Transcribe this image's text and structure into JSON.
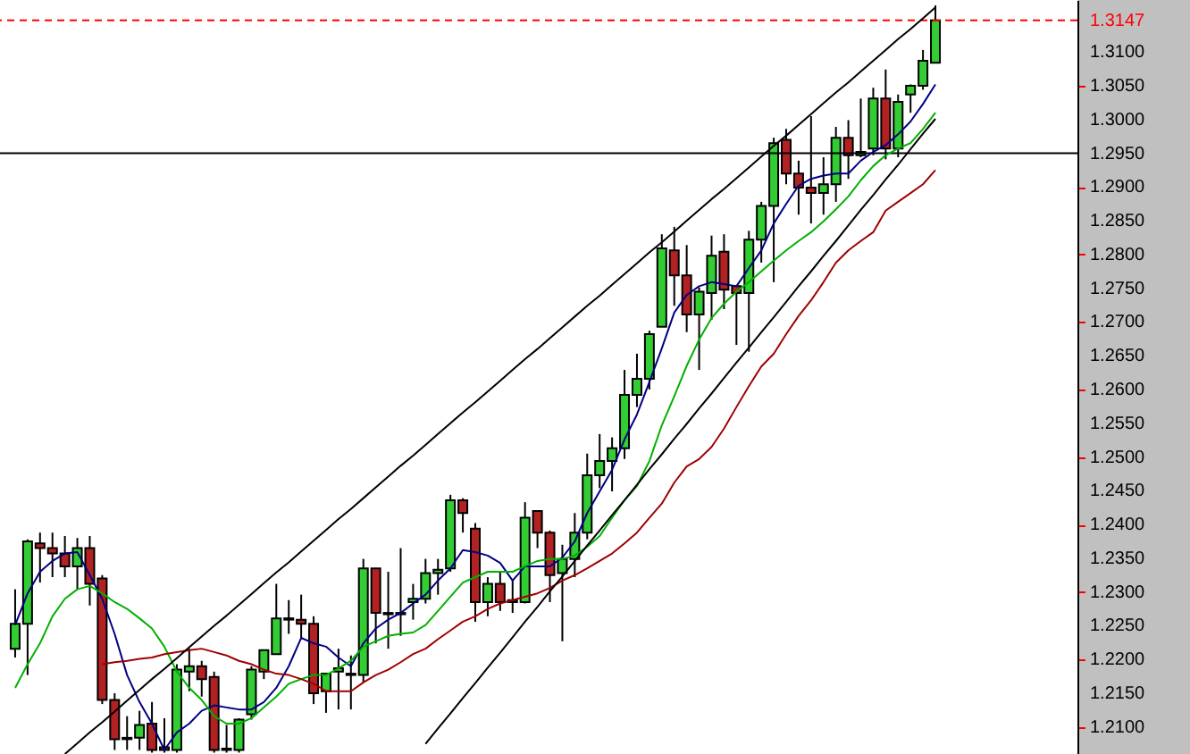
{
  "chart_data": {
    "type": "candlestick",
    "tick_labels": "y",
    "categories": [
      null,
      null,
      null,
      null,
      null,
      null,
      null,
      null,
      null,
      null,
      null,
      null,
      null,
      null,
      null,
      null,
      null,
      null,
      null,
      null,
      null,
      null,
      null,
      null,
      null,
      null,
      null,
      null,
      null,
      null,
      null,
      null,
      null,
      null,
      null,
      null,
      null,
      null,
      null,
      null,
      null,
      null,
      null,
      null,
      null,
      null,
      null,
      null,
      null,
      null,
      null,
      null,
      null,
      null,
      null,
      null,
      null,
      null,
      null,
      null,
      null,
      null,
      null,
      null,
      null,
      null,
      null,
      null,
      null,
      null,
      null,
      null,
      null,
      null,
      null
    ],
    "ohlc": [
      [
        1.2216,
        1.2304,
        1.2203,
        1.2253
      ],
      [
        1.2253,
        1.2378,
        1.2177,
        1.2375
      ],
      [
        1.2372,
        1.2388,
        1.2314,
        1.2365
      ],
      [
        1.2365,
        1.2388,
        1.2322,
        1.2357
      ],
      [
        1.2357,
        1.2383,
        1.2322,
        1.2338
      ],
      [
        1.2338,
        1.238,
        1.2304,
        1.2365
      ],
      [
        1.2365,
        1.2383,
        1.228,
        1.2312
      ],
      [
        1.232,
        1.2325,
        1.2134,
        1.214
      ],
      [
        1.214,
        1.215,
        1.2066,
        1.2082
      ],
      [
        1.2084,
        1.2116,
        1.2066,
        1.2082
      ],
      [
        1.2084,
        1.2124,
        1.2066,
        1.2103
      ],
      [
        1.2105,
        1.2137,
        1.2062,
        1.2066
      ],
      [
        1.207,
        1.2113,
        1.2062,
        1.2066
      ],
      [
        1.2066,
        1.2193,
        1.2062,
        1.2185
      ],
      [
        1.2182,
        1.2216,
        1.2153,
        1.219
      ],
      [
        1.219,
        1.2198,
        1.2145,
        1.2171
      ],
      [
        1.2174,
        1.2182,
        1.2062,
        1.2066
      ],
      [
        1.2068,
        1.2103,
        1.2062,
        1.2066
      ],
      [
        1.2066,
        1.2113,
        1.2062,
        1.2111
      ],
      [
        1.2119,
        1.219,
        1.2111,
        1.2185
      ],
      [
        1.2182,
        1.2214,
        1.2171,
        1.2214
      ],
      [
        1.2208,
        1.2312,
        1.2208,
        1.2261
      ],
      [
        1.2261,
        1.2288,
        1.2238,
        1.2259
      ],
      [
        1.2259,
        1.2296,
        1.223,
        1.2253
      ],
      [
        1.2253,
        1.2264,
        1.2134,
        1.215
      ],
      [
        1.2153,
        1.2179,
        1.2121,
        1.2179
      ],
      [
        1.2182,
        1.2216,
        1.2126,
        1.2187
      ],
      [
        1.2179,
        1.2206,
        1.2126,
        1.2177
      ],
      [
        1.2177,
        1.2349,
        1.2166,
        1.2335
      ],
      [
        1.2335,
        1.2335,
        1.2224,
        1.2269
      ],
      [
        1.2269,
        1.233,
        1.2216,
        1.2267
      ],
      [
        1.2267,
        1.2365,
        1.2235,
        1.2269
      ],
      [
        1.2285,
        1.2312,
        1.2259,
        1.229
      ],
      [
        1.229,
        1.2349,
        1.2283,
        1.2328
      ],
      [
        1.2328,
        1.2349,
        1.2296,
        1.2333
      ],
      [
        1.2335,
        1.2444,
        1.233,
        1.2436
      ],
      [
        1.2436,
        1.2439,
        1.2388,
        1.2417
      ],
      [
        1.2394,
        1.2402,
        1.2256,
        1.2285
      ],
      [
        1.2285,
        1.2322,
        1.2264,
        1.2312
      ],
      [
        1.2312,
        1.233,
        1.2272,
        1.2285
      ],
      [
        1.2285,
        1.2317,
        1.2269,
        1.2288
      ],
      [
        1.2285,
        1.2433,
        1.2283,
        1.241
      ],
      [
        1.242,
        1.242,
        1.2365,
        1.2388
      ],
      [
        1.2388,
        1.2391,
        1.2285,
        1.2325
      ],
      [
        1.2328,
        1.237,
        1.2227,
        1.2349
      ],
      [
        1.2349,
        1.2417,
        1.2322,
        1.2388
      ],
      [
        1.2388,
        1.2505,
        1.2378,
        1.2473
      ],
      [
        1.2473,
        1.2534,
        1.2454,
        1.2494
      ],
      [
        1.2494,
        1.2529,
        1.2449,
        1.2513
      ],
      [
        1.2513,
        1.2629,
        1.2497,
        1.2592
      ],
      [
        1.2592,
        1.2653,
        1.2574,
        1.2616
      ],
      [
        1.2616,
        1.2687,
        1.26,
        1.2682
      ],
      [
        1.2693,
        1.283,
        1.2693,
        1.2809
      ],
      [
        1.2806,
        1.2841,
        1.2724,
        1.2769
      ],
      [
        1.2769,
        1.2814,
        1.2685,
        1.2711
      ],
      [
        1.2711,
        1.2751,
        1.2629,
        1.2745
      ],
      [
        1.2743,
        1.2828,
        1.2703,
        1.2798
      ],
      [
        1.2804,
        1.283,
        1.2719,
        1.2748
      ],
      [
        1.2753,
        1.2753,
        1.2666,
        1.2743
      ],
      [
        1.2743,
        1.2835,
        1.2656,
        1.2822
      ],
      [
        1.2822,
        1.2878,
        1.2788,
        1.2872
      ],
      [
        1.2872,
        1.2973,
        1.2759,
        1.2965
      ],
      [
        1.297,
        1.2986,
        1.2904,
        1.292
      ],
      [
        1.292,
        1.2939,
        1.2859,
        1.2899
      ],
      [
        1.2899,
        1.3005,
        1.2846,
        1.2891
      ],
      [
        1.2891,
        1.2944,
        1.2859,
        1.2904
      ],
      [
        1.2904,
        1.2989,
        1.2878,
        1.2973
      ],
      [
        1.2973,
        1.2999,
        1.2912,
        1.2947
      ],
      [
        1.2947,
        1.3031,
        1.2944,
        1.2952
      ],
      [
        1.2957,
        1.3047,
        1.2947,
        1.3031
      ],
      [
        1.3031,
        1.3074,
        1.2941,
        1.2957
      ],
      [
        1.2957,
        1.3037,
        1.2944,
        1.3026
      ],
      [
        1.3037,
        1.3052,
        1.301,
        1.305
      ],
      [
        1.305,
        1.3103,
        1.3044,
        1.3087
      ],
      [
        1.3084,
        1.3169,
        1.3084,
        1.3147
      ]
    ],
    "colors": [
      "#32cd32",
      "#32cd32",
      "#b22222",
      "#b22222",
      "#b22222",
      "#32cd32",
      "#b22222",
      "#b22222",
      "#b22222",
      "#b22222",
      "#32cd32",
      "#b22222",
      "#b22222",
      "#32cd32",
      "#32cd32",
      "#b22222",
      "#b22222",
      "#b22222",
      "#32cd32",
      "#32cd32",
      "#32cd32",
      "#32cd32",
      "#b22222",
      "#b22222",
      "#b22222",
      "#32cd32",
      "#32cd32",
      "#b22222",
      "#32cd32",
      "#b22222",
      "#b22222",
      "#32cd32",
      "#32cd32",
      "#32cd32",
      "#32cd32",
      "#32cd32",
      "#b22222",
      "#b22222",
      "#32cd32",
      "#b22222",
      "#32cd32",
      "#32cd32",
      "#b22222",
      "#b22222",
      "#32cd32",
      "#32cd32",
      "#32cd32",
      "#32cd32",
      "#32cd32",
      "#32cd32",
      "#32cd32",
      "#32cd32",
      "#32cd32",
      "#b22222",
      "#b22222",
      "#32cd32",
      "#32cd32",
      "#b22222",
      "#b22222",
      "#32cd32",
      "#32cd32",
      "#32cd32",
      "#b22222",
      "#b22222",
      "#b22222",
      "#32cd32",
      "#32cd32",
      "#b22222",
      "#32cd32",
      "#32cd32",
      "#b22222",
      "#32cd32",
      "#32cd32",
      "#32cd32",
      "#32cd32"
    ],
    "series": [
      {
        "type": "line",
        "color": "#000080",
        "values": [
          1.2251,
          1.2298,
          1.233,
          1.2346,
          1.2357,
          1.2359,
          1.2325,
          1.229,
          1.2238,
          1.2177,
          1.2137,
          1.2105,
          1.2066,
          1.2092,
          1.2105,
          1.2124,
          1.2132,
          1.2129,
          1.2126,
          1.2126,
          1.2137,
          1.2158,
          1.219,
          1.2232,
          1.2224,
          1.2219,
          1.2203,
          1.219,
          1.2224,
          1.2246,
          1.2259,
          1.2269,
          1.2283,
          1.2296,
          1.2317,
          1.2335,
          1.2362,
          1.2359,
          1.2354,
          1.2343,
          1.2317,
          1.2338,
          1.2338,
          1.2338,
          1.2351,
          1.2375,
          1.2417,
          1.2449,
          1.2481,
          1.2526,
          1.2563,
          1.2611,
          1.2661,
          1.2714,
          1.274,
          1.2753,
          1.2759,
          1.2756,
          1.2753,
          1.278,
          1.2806,
          1.2846,
          1.2875,
          1.2902,
          1.2912,
          1.2917,
          1.292,
          1.292,
          1.2939,
          1.2952,
          1.2962,
          1.2978,
          1.2997,
          1.3023,
          1.3052
        ]
      },
      {
        "type": "line",
        "color": "#00b000",
        "values": [
          1.2158,
          1.2193,
          1.2224,
          1.2264,
          1.229,
          1.2304,
          1.2309,
          1.2298,
          1.2285,
          1.2275,
          1.2261,
          1.2246,
          1.2219,
          1.2182,
          1.2158,
          1.214,
          1.2116,
          1.2105,
          1.2105,
          1.2113,
          1.2129,
          1.2145,
          1.2164,
          1.2171,
          1.2177,
          1.2177,
          1.2187,
          1.2198,
          1.2219,
          1.2227,
          1.2235,
          1.2238,
          1.224,
          1.2251,
          1.2272,
          1.2293,
          1.2314,
          1.2322,
          1.233,
          1.233,
          1.233,
          1.2338,
          1.2346,
          1.2349,
          1.2349,
          1.2354,
          1.2367,
          1.2383,
          1.241,
          1.2436,
          1.2457,
          1.2494,
          1.2547,
          1.259,
          1.2635,
          1.2674,
          1.2706,
          1.2727,
          1.2745,
          1.2759,
          1.2775,
          1.2791,
          1.2806,
          1.282,
          1.2833,
          1.2849,
          1.2867,
          1.2886,
          1.291,
          1.2931,
          1.2947,
          1.2957,
          1.2965,
          1.2986,
          1.301
        ]
      },
      {
        "type": "line",
        "color": "#a00000",
        "values": [
          null,
          null,
          null,
          null,
          null,
          null,
          null,
          1.2193,
          1.2196,
          1.2198,
          1.2201,
          1.2203,
          1.2208,
          1.2211,
          1.2214,
          1.2216,
          1.2211,
          1.2206,
          1.2198,
          1.2193,
          1.2185,
          1.2179,
          1.2177,
          1.2171,
          1.2164,
          1.2153,
          1.2153,
          1.2153,
          1.2166,
          1.2177,
          1.2185,
          1.2196,
          1.2208,
          1.2216,
          1.223,
          1.2243,
          1.2256,
          1.2264,
          1.2275,
          1.2283,
          1.2288,
          1.2293,
          1.2298,
          1.2306,
          1.2317,
          1.2325,
          1.2335,
          1.2346,
          1.2357,
          1.2372,
          1.2388,
          1.241,
          1.2431,
          1.2462,
          1.2486,
          1.2497,
          1.2515,
          1.2542,
          1.2574,
          1.2605,
          1.2634,
          1.2653,
          1.2682,
          1.2709,
          1.2732,
          1.2759,
          1.2788,
          1.2806,
          1.282,
          1.2833,
          1.2865,
          1.2878,
          1.2891,
          1.2904,
          1.2925
        ]
      },
      {
        "type": "line",
        "color": "#000000",
        "values": [
          null,
          null,
          null,
          null,
          1.206,
          1.2076,
          1.2092,
          1.2107,
          1.2123,
          1.2139,
          1.2155,
          1.2171,
          1.2186,
          1.2202,
          1.2218,
          1.2234,
          1.225,
          1.2265,
          1.2281,
          1.2297,
          1.2313,
          1.2329,
          1.2344,
          1.236,
          1.2376,
          1.2392,
          1.2408,
          1.2423,
          1.2439,
          1.2455,
          1.2471,
          1.2487,
          1.2502,
          1.2518,
          1.2534,
          1.255,
          1.2566,
          1.2581,
          1.2597,
          1.2613,
          1.2629,
          1.2645,
          1.266,
          1.2676,
          1.2692,
          1.2708,
          1.2724,
          1.2739,
          1.2755,
          1.2771,
          1.2787,
          1.2803,
          1.2818,
          1.2834,
          1.285,
          1.2866,
          1.2882,
          1.2897,
          1.2913,
          1.2929,
          1.2945,
          1.2961,
          1.2976,
          1.2992,
          1.3008,
          1.3024,
          1.304,
          1.3055,
          1.3071,
          1.3087,
          1.3103,
          1.3119,
          1.3134,
          1.315,
          1.3166
        ]
      },
      {
        "type": "line",
        "color": "#000000",
        "values": [
          null,
          null,
          null,
          null,
          null,
          null,
          null,
          null,
          null,
          null,
          null,
          null,
          null,
          null,
          null,
          null,
          null,
          null,
          null,
          null,
          null,
          null,
          null,
          null,
          null,
          null,
          null,
          null,
          null,
          null,
          null,
          null,
          null,
          1.2075,
          1.2098,
          1.212,
          1.2143,
          1.2165,
          1.2188,
          1.221,
          1.2233,
          1.2256,
          1.2278,
          1.2301,
          1.2323,
          1.2346,
          1.2369,
          1.2391,
          1.2414,
          1.2436,
          1.2459,
          1.2482,
          1.2504,
          1.2527,
          1.2549,
          1.2572,
          1.2594,
          1.2617,
          1.264,
          1.2662,
          1.2685,
          1.2707,
          1.273,
          1.2753,
          1.2775,
          1.2798,
          1.282,
          1.2843,
          1.2866,
          1.2888,
          1.2911,
          1.2933,
          1.2956,
          1.2979,
          1.3001
        ]
      }
    ],
    "ylim": [
      1.206,
      1.3177
    ],
    "yticks": [
      {
        "value": 1.21,
        "label": "1.2100"
      },
      {
        "value": 1.215,
        "label": "1.2150"
      },
      {
        "value": 1.22,
        "label": "1.2200"
      },
      {
        "value": 1.225,
        "label": "1.2250"
      },
      {
        "value": 1.23,
        "label": "1.2300"
      },
      {
        "value": 1.235,
        "label": "1.2350"
      },
      {
        "value": 1.24,
        "label": "1.2400"
      },
      {
        "value": 1.245,
        "label": "1.2450"
      },
      {
        "value": 1.25,
        "label": "1.2500"
      },
      {
        "value": 1.255,
        "label": "1.2550"
      },
      {
        "value": 1.26,
        "label": "1.2600"
      },
      {
        "value": 1.265,
        "label": "1.2650"
      },
      {
        "value": 1.27,
        "label": "1.2700"
      },
      {
        "value": 1.275,
        "label": "1.2750"
      },
      {
        "value": 1.28,
        "label": "1.2800"
      },
      {
        "value": 1.285,
        "label": "1.2850"
      },
      {
        "value": 1.29,
        "label": "1.2900"
      },
      {
        "value": 1.3,
        "label": "1.3000"
      },
      {
        "value": 1.305,
        "label": "1.3050"
      },
      {
        "value": 1.31,
        "label": "1.3100"
      }
    ],
    "ref_lines": [
      {
        "axis": "y",
        "value": 1.3147,
        "label": "1.3147",
        "color": "#ff0000",
        "line_style": "dashed"
      },
      {
        "axis": "y",
        "value": 1.295,
        "label": "1.2950",
        "color": "#000000",
        "line_style": "solid"
      }
    ]
  }
}
